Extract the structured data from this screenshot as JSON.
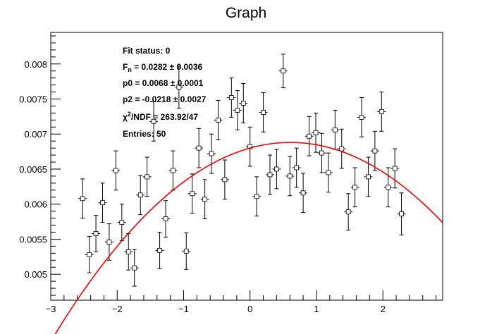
{
  "chart_data": {
    "type": "scatter",
    "title": "Graph",
    "xlabel": "",
    "ylabel": "",
    "xlim": [
      -3.0,
      2.9
    ],
    "ylim": [
      0.00463,
      0.00845
    ],
    "x_ticks": [
      -3,
      -2,
      -1,
      0,
      1,
      2
    ],
    "x_tick_labels": [
      "−3",
      "−2",
      "−1",
      "0",
      "1",
      "2"
    ],
    "y_ticks": [
      0.005,
      0.0055,
      0.006,
      0.0065,
      0.007,
      0.0075,
      0.008
    ],
    "y_tick_labels": [
      "0.005",
      "0.0055",
      "0.006",
      "0.0065",
      "0.007",
      "0.0075",
      "0.008"
    ],
    "grid": false,
    "points": [
      {
        "x": -2.52,
        "y": 0.00608,
        "err": 0.00028
      },
      {
        "x": -2.42,
        "y": 0.00528,
        "err": 0.00026
      },
      {
        "x": -2.32,
        "y": 0.00558,
        "err": 0.00026
      },
      {
        "x": -2.22,
        "y": 0.00602,
        "err": 0.00028
      },
      {
        "x": -2.12,
        "y": 0.00546,
        "err": 0.00026
      },
      {
        "x": -2.02,
        "y": 0.00648,
        "err": 0.00028
      },
      {
        "x": -1.93,
        "y": 0.00574,
        "err": 0.00026
      },
      {
        "x": -1.83,
        "y": 0.00532,
        "err": 0.00026
      },
      {
        "x": -1.74,
        "y": 0.00509,
        "err": 0.00026
      },
      {
        "x": -1.65,
        "y": 0.00613,
        "err": 0.00028
      },
      {
        "x": -1.55,
        "y": 0.00639,
        "err": 0.00028
      },
      {
        "x": -1.45,
        "y": 0.00718,
        "err": 0.00028
      },
      {
        "x": -1.36,
        "y": 0.00534,
        "err": 0.00026
      },
      {
        "x": -1.27,
        "y": 0.00579,
        "err": 0.00026
      },
      {
        "x": -1.16,
        "y": 0.00648,
        "err": 0.00028
      },
      {
        "x": -1.07,
        "y": 0.00767,
        "err": 0.0003
      },
      {
        "x": -0.96,
        "y": 0.00533,
        "err": 0.00026
      },
      {
        "x": -0.87,
        "y": 0.00615,
        "err": 0.00028
      },
      {
        "x": -0.77,
        "y": 0.0068,
        "err": 0.00028
      },
      {
        "x": -0.68,
        "y": 0.00607,
        "err": 0.00028
      },
      {
        "x": -0.58,
        "y": 0.00672,
        "err": 0.00028
      },
      {
        "x": -0.48,
        "y": 0.0072,
        "err": 0.00028
      },
      {
        "x": -0.38,
        "y": 0.00635,
        "err": 0.00028
      },
      {
        "x": -0.28,
        "y": 0.00752,
        "err": 0.00028
      },
      {
        "x": -0.19,
        "y": 0.00734,
        "err": 0.00028
      },
      {
        "x": -0.1,
        "y": 0.00744,
        "err": 0.00028
      },
      {
        "x": 0.0,
        "y": 0.00682,
        "err": 0.00028
      },
      {
        "x": 0.1,
        "y": 0.00611,
        "err": 0.00028
      },
      {
        "x": 0.2,
        "y": 0.00731,
        "err": 0.00028
      },
      {
        "x": 0.3,
        "y": 0.00642,
        "err": 0.00028
      },
      {
        "x": 0.4,
        "y": 0.0065,
        "err": 0.00028
      },
      {
        "x": 0.5,
        "y": 0.0079,
        "err": 0.00024
      },
      {
        "x": 0.6,
        "y": 0.0064,
        "err": 0.00028
      },
      {
        "x": 0.7,
        "y": 0.00652,
        "err": 0.00028
      },
      {
        "x": 0.8,
        "y": 0.00616,
        "err": 0.00028
      },
      {
        "x": 0.89,
        "y": 0.00697,
        "err": 0.00028
      },
      {
        "x": 0.99,
        "y": 0.00702,
        "err": 0.00028
      },
      {
        "x": 1.08,
        "y": 0.00673,
        "err": 0.00028
      },
      {
        "x": 1.18,
        "y": 0.00645,
        "err": 0.00028
      },
      {
        "x": 1.28,
        "y": 0.00706,
        "err": 0.00028
      },
      {
        "x": 1.38,
        "y": 0.00679,
        "err": 0.00028
      },
      {
        "x": 1.48,
        "y": 0.00589,
        "err": 0.00026
      },
      {
        "x": 1.58,
        "y": 0.00624,
        "err": 0.00028
      },
      {
        "x": 1.68,
        "y": 0.00724,
        "err": 0.00028
      },
      {
        "x": 1.78,
        "y": 0.00639,
        "err": 0.00028
      },
      {
        "x": 1.88,
        "y": 0.00676,
        "err": 0.00028
      },
      {
        "x": 1.98,
        "y": 0.00732,
        "err": 0.00028
      },
      {
        "x": 2.08,
        "y": 0.00624,
        "err": 0.00028
      },
      {
        "x": 2.18,
        "y": 0.00651,
        "err": 0.00028
      },
      {
        "x": 2.28,
        "y": 0.00586,
        "err": 0.0003
      }
    ],
    "fit": {
      "p0": 0.0068,
      "p1": 0.0282,
      "p2": -0.0218,
      "color": "#ff0000",
      "x_range": [
        -3.0,
        2.9
      ]
    },
    "stats_box": {
      "fit_status": "Fit status: 0",
      "fn_prefix": "F",
      "fn_sub": "n",
      "fn_value": " = 0.0282 ± 0.0036",
      "p0": "p0 = 0.0068 ± 0.0001",
      "p2": "p2 = -0.0218 ± 0.0027",
      "chi_prefix": "χ",
      "chi_sup": "2",
      "chi_value": "/NDF = 263.92/47",
      "entries": "Entries: 50"
    }
  }
}
